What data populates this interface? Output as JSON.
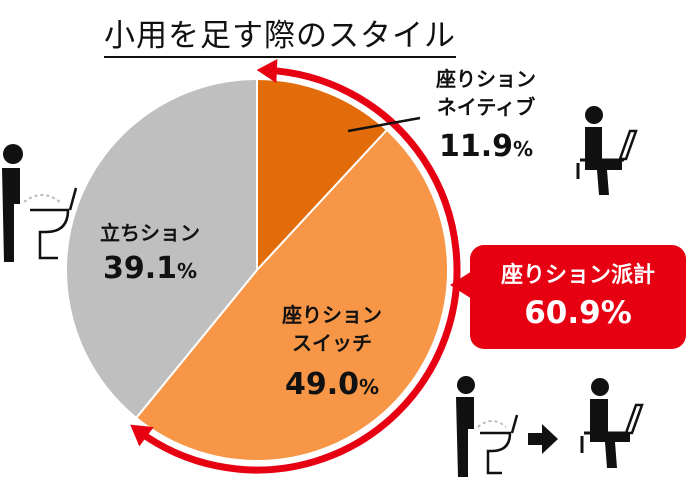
{
  "chart_data": {
    "type": "pie",
    "title": "小用を足す際のスタイル",
    "slices": [
      {
        "label": "座りション\nネイティブ",
        "value": 11.9,
        "value_text": "11.9",
        "color": "#e26b0a"
      },
      {
        "label": "座りション\nスイッチ",
        "value": 49.0,
        "value_text": "49.0",
        "color": "#f79646"
      },
      {
        "label": "立ちション",
        "value": 39.1,
        "value_text": "39.1",
        "color": "#bfbfbf"
      }
    ],
    "unit": "%",
    "summary": {
      "label": "座りション派計",
      "value_text": "60.9%"
    },
    "highlight_color": "#e60012"
  },
  "icons": [
    "person-sitting-icon",
    "person-standing-urinating-icon",
    "standing-to-sitting-icon"
  ]
}
